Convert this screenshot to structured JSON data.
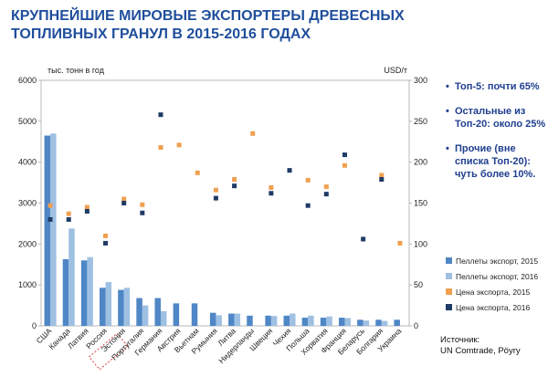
{
  "title": {
    "line1": "КРУПНЕЙШИЕ МИРОВЫЕ ЭКСПОРТЕРЫ ДРЕВЕСНЫХ",
    "line2": "ТОПЛИВНЫХ ГРАНУЛ В 2015-2016 ГОДАХ"
  },
  "notes": [
    "Топ-5: почти 65%",
    "Остальные из Топ-20: около 25%",
    "Прочие (вне списка Топ-20): чуть более 10%."
  ],
  "source": {
    "label": "Источник:",
    "value": "UN Comtrade, Pöyry"
  },
  "colors": {
    "bar2015": "#4f86c6",
    "bar2016": "#9ec0e2",
    "price2015": "#f0a050",
    "price2016": "#1f3b66",
    "title": "#1f4e9c",
    "highlight": "#e04040"
  },
  "chart_data": {
    "type": "bar",
    "ylabel": "тыс. тонн в год",
    "y2label": "USD/т",
    "ylim": [
      0,
      6000
    ],
    "y2lim": [
      0,
      300
    ],
    "yticks": [
      0,
      1000,
      2000,
      3000,
      4000,
      5000,
      6000
    ],
    "y2ticks": [
      0,
      50,
      100,
      150,
      200,
      250,
      300
    ],
    "highlighted_category": "Россия",
    "categories": [
      "США",
      "Канада",
      "Латвия",
      "Россия",
      "Эстония",
      "Португалия",
      "Германия",
      "Австрия",
      "Вьетнам",
      "Румыния",
      "Литва",
      "Нидерланды",
      "Швеция",
      "Чехия",
      "Польша",
      "Хорватия",
      "Франция",
      "Беларусь",
      "Болгария",
      "Украина"
    ],
    "series": [
      {
        "name": "Пеллеты экспорт, 2015",
        "kind": "bar",
        "axis": "left",
        "values": [
          4650,
          1630,
          1600,
          930,
          880,
          680,
          680,
          550,
          550,
          320,
          300,
          250,
          250,
          250,
          200,
          200,
          200,
          150,
          150,
          150
        ]
      },
      {
        "name": "Пеллеты экспорт, 2016",
        "kind": "bar",
        "axis": "left",
        "values": [
          4700,
          2380,
          1680,
          1070,
          930,
          500,
          360,
          null,
          null,
          260,
          300,
          null,
          240,
          300,
          250,
          230,
          190,
          130,
          120,
          null
        ]
      },
      {
        "name": "Цена экспорта, 2015",
        "kind": "scatter",
        "axis": "right",
        "values": [
          147,
          137,
          145,
          110,
          155,
          148,
          218,
          221,
          187,
          166,
          179,
          235,
          169,
          null,
          178,
          170,
          196,
          null,
          184,
          101
        ]
      },
      {
        "name": "Цена экспорта, 2016",
        "kind": "scatter",
        "axis": "right",
        "values": [
          130,
          130,
          140,
          101,
          150,
          138,
          258,
          null,
          null,
          156,
          171,
          null,
          162,
          190,
          147,
          161,
          209,
          106,
          179,
          null
        ]
      }
    ]
  }
}
